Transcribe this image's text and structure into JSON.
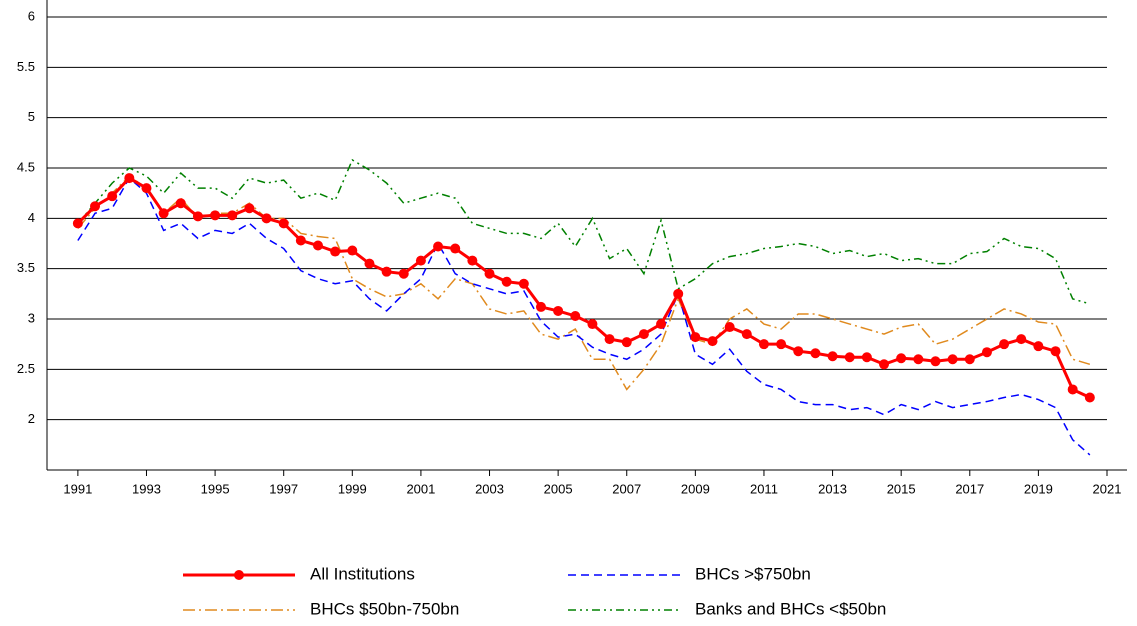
{
  "chart_data": {
    "type": "line",
    "x": [
      1991,
      1991.5,
      1992,
      1992.5,
      1993,
      1993.5,
      1994,
      1994.5,
      1995,
      1995.5,
      1996,
      1996.5,
      1997,
      1997.5,
      1998,
      1998.5,
      1999,
      1999.5,
      2000,
      2000.5,
      2001,
      2001.5,
      2002,
      2002.5,
      2003,
      2003.5,
      2004,
      2004.5,
      2005,
      2005.5,
      2006,
      2006.5,
      2007,
      2007.5,
      2008,
      2008.5,
      2009,
      2009.5,
      2010,
      2010.5,
      2011,
      2011.5,
      2012,
      2012.5,
      2013,
      2013.5,
      2014,
      2014.5,
      2015,
      2015.5,
      2016,
      2016.5,
      2017,
      2017.5,
      2018,
      2018.5,
      2019,
      2019.5,
      2020,
      2020.5
    ],
    "xlim": [
      1990.1,
      2021
    ],
    "xticks": [
      1991,
      1993,
      1995,
      1997,
      1999,
      2001,
      2003,
      2005,
      2007,
      2009,
      2011,
      2013,
      2015,
      2017,
      2019,
      2021
    ],
    "ylim": [
      1.5,
      6
    ],
    "yticks": [
      2,
      2.5,
      3,
      3.5,
      4,
      4.5,
      5,
      5.5,
      6
    ],
    "grid": true,
    "legend": "bottom",
    "series": [
      {
        "name": "All Institutions",
        "color": "#ff0000",
        "style": "solid-markers",
        "values": [
          3.95,
          4.12,
          4.22,
          4.4,
          4.3,
          4.05,
          4.15,
          4.02,
          4.03,
          4.03,
          4.1,
          4.0,
          3.95,
          3.78,
          3.73,
          3.67,
          3.68,
          3.55,
          3.47,
          3.45,
          3.58,
          3.72,
          3.7,
          3.58,
          3.45,
          3.37,
          3.35,
          3.12,
          3.08,
          3.03,
          2.95,
          2.8,
          2.77,
          2.85,
          2.95,
          3.25,
          2.82,
          2.78,
          2.92,
          2.85,
          2.75,
          2.75,
          2.68,
          2.66,
          2.63,
          2.62,
          2.62,
          2.55,
          2.61,
          2.6,
          2.58,
          2.6,
          2.6,
          2.67,
          2.75,
          2.8,
          2.73,
          2.68,
          2.3,
          2.22
        ]
      },
      {
        "name": "BHCs >$750bn",
        "color": "#0000ff",
        "style": "dashed",
        "values": [
          3.78,
          4.05,
          4.1,
          4.4,
          4.25,
          3.88,
          3.95,
          3.8,
          3.88,
          3.85,
          3.95,
          3.8,
          3.7,
          3.48,
          3.4,
          3.35,
          3.38,
          3.2,
          3.08,
          3.25,
          3.4,
          3.75,
          3.45,
          3.35,
          3.3,
          3.25,
          3.28,
          2.98,
          2.82,
          2.85,
          2.72,
          2.65,
          2.6,
          2.7,
          2.85,
          3.25,
          2.65,
          2.55,
          2.7,
          2.48,
          2.35,
          2.3,
          2.18,
          2.15,
          2.15,
          2.1,
          2.12,
          2.05,
          2.15,
          2.1,
          2.18,
          2.12,
          2.15,
          2.18,
          2.22,
          2.25,
          2.2,
          2.12,
          1.8,
          1.65
        ]
      },
      {
        "name": "BHCs $50bn-750bn",
        "color": "#e08a1e",
        "style": "dash-dot",
        "values": [
          3.9,
          4.1,
          4.25,
          4.42,
          4.3,
          4.05,
          4.2,
          4.0,
          4.05,
          4.05,
          4.15,
          4.0,
          4.0,
          3.85,
          3.82,
          3.8,
          3.4,
          3.3,
          3.22,
          3.25,
          3.35,
          3.2,
          3.4,
          3.35,
          3.1,
          3.05,
          3.08,
          2.85,
          2.8,
          2.9,
          2.6,
          2.6,
          2.3,
          2.5,
          2.75,
          3.2,
          2.8,
          2.75,
          3.0,
          3.1,
          2.95,
          2.9,
          3.05,
          3.05,
          3.0,
          2.95,
          2.9,
          2.85,
          2.92,
          2.95,
          2.75,
          2.8,
          2.9,
          3.0,
          3.1,
          3.05,
          2.97,
          2.95,
          2.6,
          2.55
        ]
      },
      {
        "name": "Banks and BHCs <$50bn",
        "color": "#008000",
        "style": "dash-dot-dot",
        "values": [
          3.95,
          4.15,
          4.35,
          4.5,
          4.42,
          4.25,
          4.45,
          4.3,
          4.3,
          4.2,
          4.4,
          4.35,
          4.38,
          4.2,
          4.25,
          4.18,
          4.58,
          4.48,
          4.35,
          4.15,
          4.2,
          4.25,
          4.2,
          3.95,
          3.9,
          3.85,
          3.85,
          3.8,
          3.95,
          3.72,
          4.0,
          3.6,
          3.7,
          3.45,
          3.98,
          3.3,
          3.4,
          3.55,
          3.62,
          3.65,
          3.7,
          3.72,
          3.75,
          3.72,
          3.65,
          3.68,
          3.62,
          3.65,
          3.58,
          3.6,
          3.55,
          3.55,
          3.65,
          3.67,
          3.8,
          3.72,
          3.7,
          3.6,
          3.2,
          3.15
        ]
      }
    ]
  }
}
